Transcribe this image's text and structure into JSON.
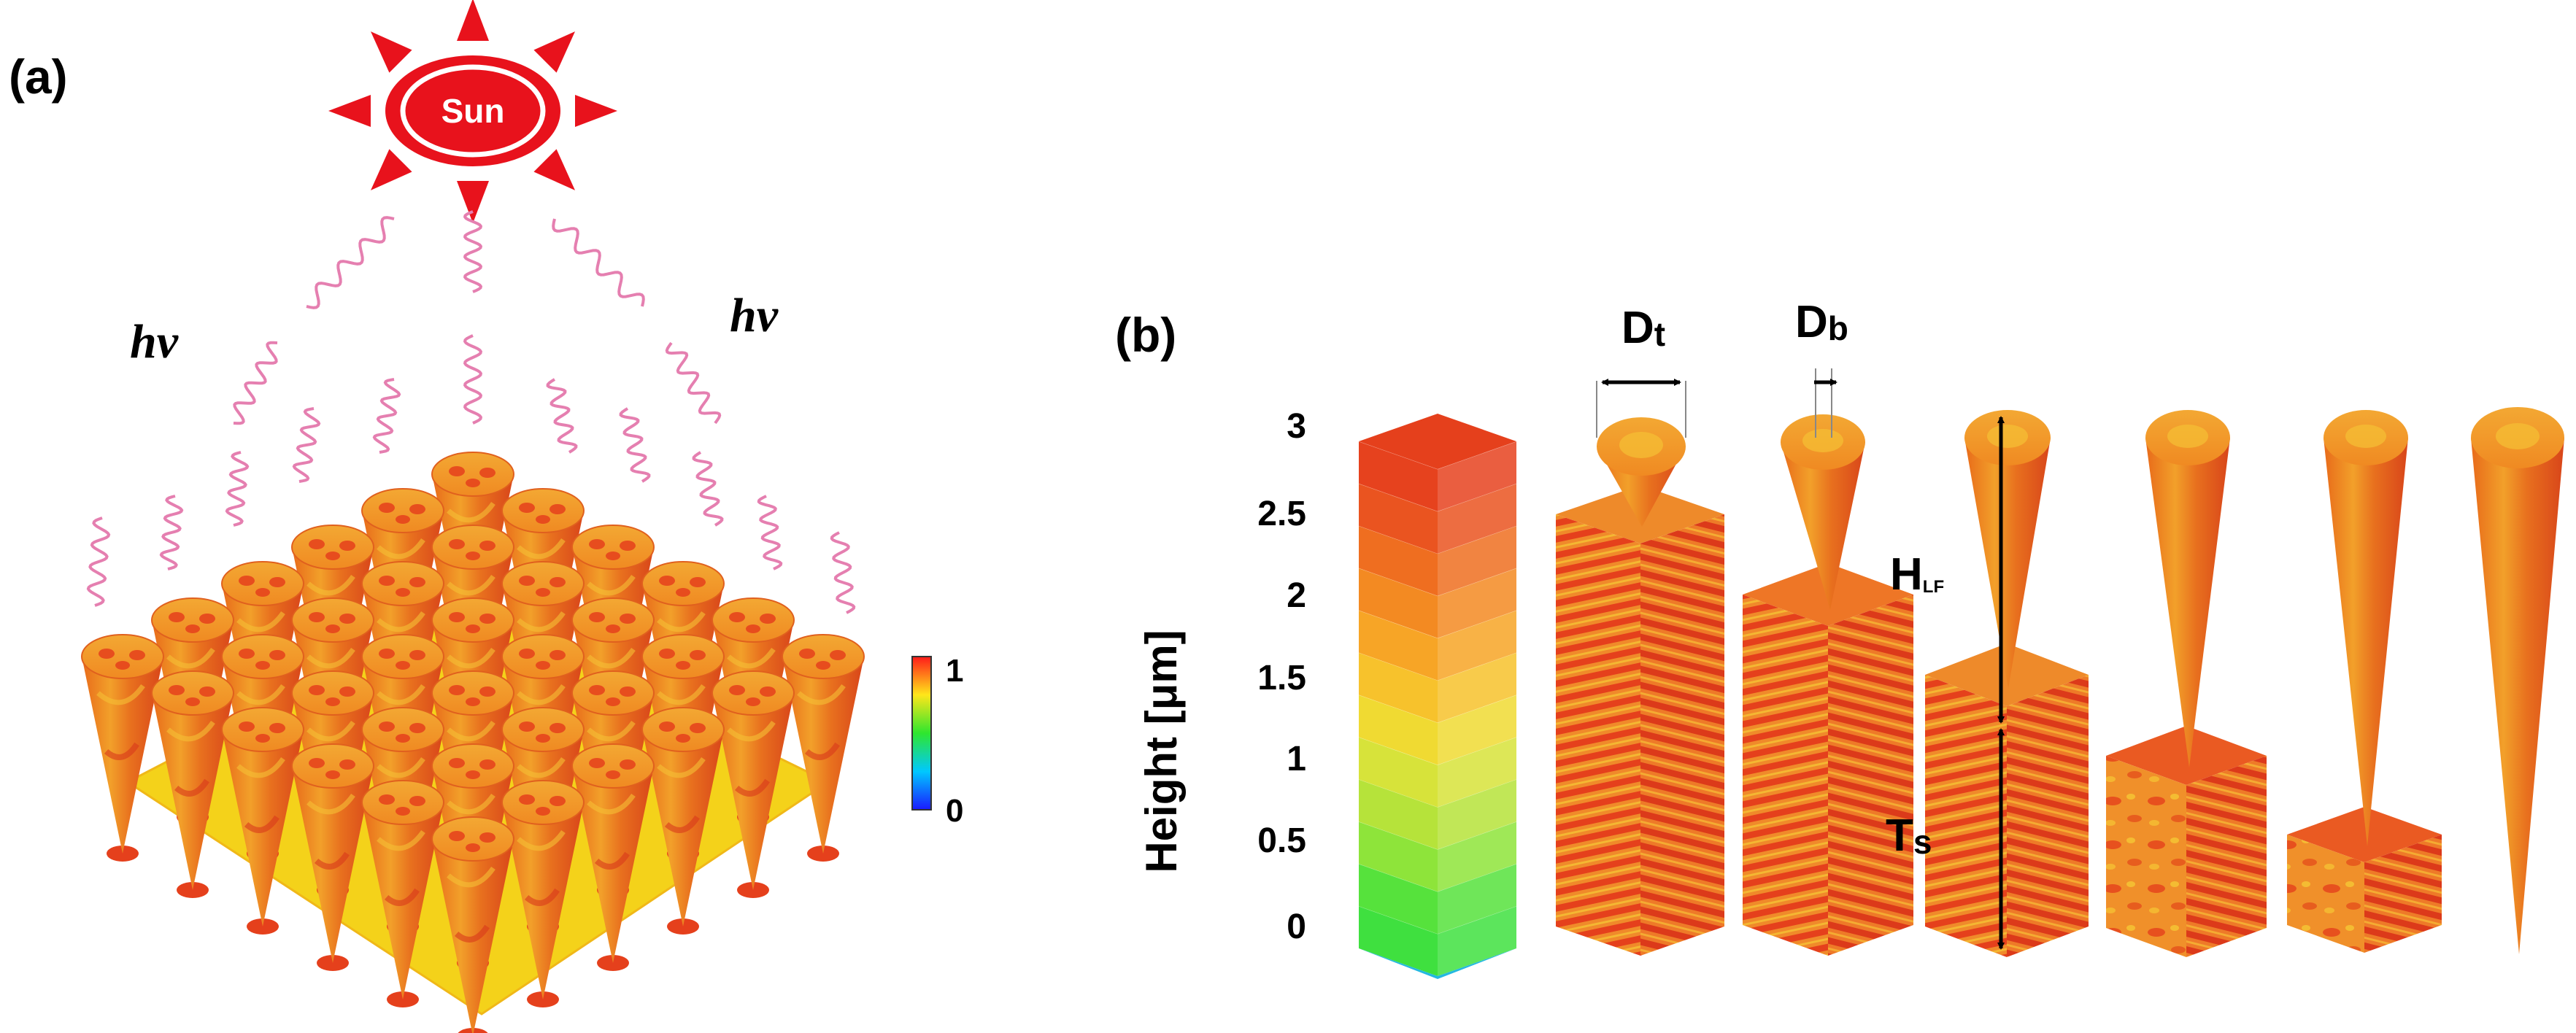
{
  "panel_a": {
    "label": "(a)",
    "sun_label": "Sun",
    "photon_label_left": "hv",
    "photon_label_right": "hv",
    "colorbar": {
      "max_label": "1",
      "min_label": "0"
    }
  },
  "panel_b": {
    "label": "(b)",
    "y_axis_label": "Height [μm]",
    "height_ticks": [
      "3",
      "2.5",
      "2",
      "1.5",
      "1",
      "0.5",
      "0"
    ],
    "annotations": {
      "dt_main": "D",
      "dt_sub": "t",
      "db_main": "D",
      "db_sub": "b",
      "hlf_main": "H",
      "hlf_sub": "LF",
      "ts_main": "T",
      "ts_sub": "s"
    }
  },
  "colors": {
    "sun": "#e8121c",
    "photon": "#e57fb0",
    "surface_orange": "#f07a1c",
    "surface_red": "#e5401c",
    "base_yellow": "#f4d21a"
  }
}
